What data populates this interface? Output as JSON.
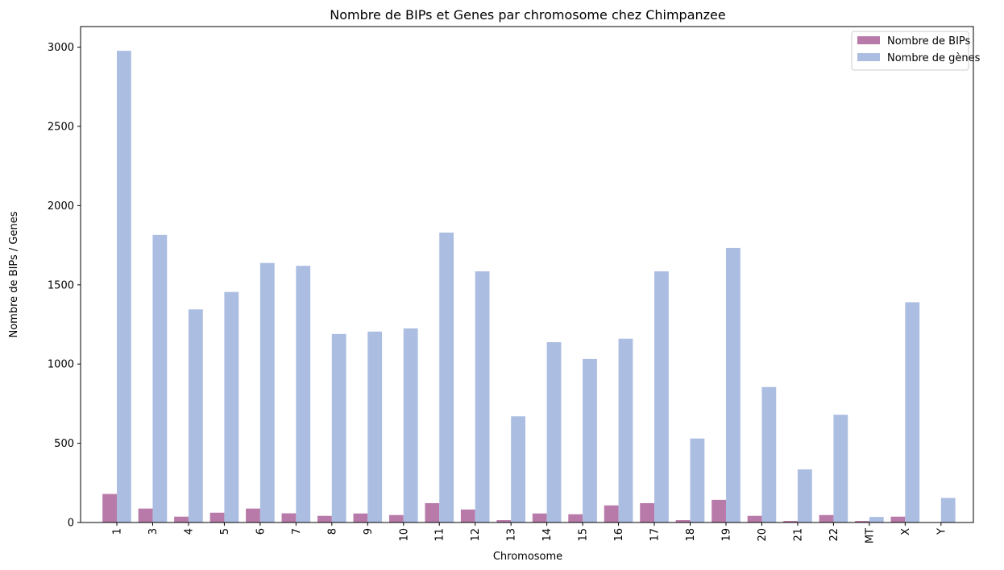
{
  "chart_data": {
    "type": "bar",
    "title": "Nombre de BIPs et Genes par chromosome chez Chimpanzee",
    "xlabel": "Chromosome",
    "ylabel": "Nombre de BIPs / Genes",
    "ylim": [
      0,
      3130
    ],
    "yticks": [
      0,
      500,
      1000,
      1500,
      2000,
      2500,
      3000
    ],
    "grid": false,
    "legend_position": "top-right",
    "categories": [
      "1",
      "3",
      "4",
      "5",
      "6",
      "7",
      "8",
      "9",
      "10",
      "11",
      "12",
      "13",
      "14",
      "15",
      "16",
      "17",
      "18",
      "19",
      "20",
      "21",
      "22",
      "MT",
      "X",
      "Y"
    ],
    "series": [
      {
        "name": "Nombre de BIPs",
        "color": "#b87ba9",
        "values": [
          180,
          88,
          37,
          62,
          88,
          58,
          42,
          57,
          47,
          122,
          82,
          15,
          57,
          52,
          108,
          122,
          15,
          143,
          42,
          10,
          47,
          10,
          37,
          0
        ]
      },
      {
        "name": "Nombre de gènes",
        "color": "#abbde1",
        "values": [
          2977,
          1815,
          1345,
          1455,
          1638,
          1620,
          1190,
          1205,
          1225,
          1830,
          1585,
          670,
          1138,
          1032,
          1160,
          1585,
          530,
          1733,
          855,
          335,
          680,
          35,
          1390,
          155
        ]
      }
    ]
  }
}
